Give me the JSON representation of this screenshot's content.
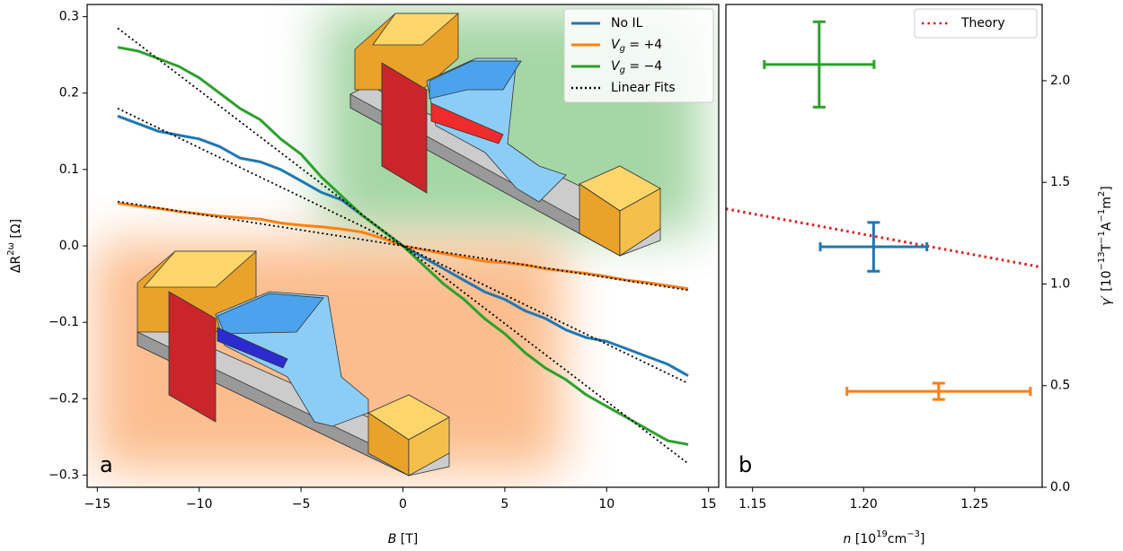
{
  "chart_data": [
    {
      "type": "line",
      "panel": "a",
      "xlabel": [
        {
          "text": "B",
          "italic": true
        },
        {
          "text": " [T]"
        }
      ],
      "ylabel": [
        {
          "text": "ΔR"
        },
        {
          "text": "2ω",
          "sup": true
        },
        {
          "text": " [Ω]"
        }
      ],
      "xlim": [
        -15.5,
        15.5
      ],
      "ylim": [
        -0.316,
        0.316
      ],
      "xticks": [
        {
          "value": -15,
          "label": "−15"
        },
        {
          "value": -10,
          "label": "−10"
        },
        {
          "value": -5,
          "label": "−5"
        },
        0,
        5,
        10,
        15
      ],
      "yticks": [
        {
          "value": -0.3,
          "label": "−0.3"
        },
        {
          "value": -0.2,
          "label": "−0.2"
        },
        {
          "value": -0.1,
          "label": "−0.1"
        },
        {
          "value": 0,
          "label": "0.0"
        },
        0.1,
        0.2,
        0.3
      ],
      "legend": "upper right",
      "x": [
        -14,
        -13,
        -12,
        -11,
        -10,
        -9,
        -8,
        -7,
        -6,
        -5,
        -4,
        -3,
        -2,
        -1,
        0,
        1,
        2,
        3,
        4,
        5,
        6,
        7,
        8,
        9,
        10,
        11,
        12,
        13,
        14
      ],
      "series": [
        {
          "name": "No IL",
          "color": "#1f77b4",
          "values": [
            0.17,
            0.16,
            0.15,
            0.145,
            0.14,
            0.13,
            0.115,
            0.11,
            0.1,
            0.085,
            0.07,
            0.06,
            0.04,
            0.02,
            0,
            -0.015,
            -0.03,
            -0.045,
            -0.06,
            -0.07,
            -0.085,
            -0.095,
            -0.11,
            -0.12,
            -0.125,
            -0.135,
            -0.145,
            -0.155,
            -0.17
          ]
        },
        {
          "name": [
            {
              "text": "V",
              "italic": true
            },
            {
              "text": "g",
              "italic": true,
              "sub": true
            },
            {
              "text": " = +4"
            }
          ],
          "color": "#ff7f0e",
          "values": [
            0.056,
            0.052,
            0.049,
            0.045,
            0.042,
            0.039,
            0.037,
            0.035,
            0.03,
            0.027,
            0.025,
            0.022,
            0.018,
            0.01,
            0,
            -0.005,
            -0.01,
            -0.015,
            -0.02,
            -0.022,
            -0.025,
            -0.03,
            -0.033,
            -0.036,
            -0.04,
            -0.045,
            -0.048,
            -0.052,
            -0.056
          ]
        },
        {
          "name": [
            {
              "text": "V",
              "italic": true
            },
            {
              "text": "g",
              "italic": true,
              "sub": true
            },
            {
              "text": " = −4"
            }
          ],
          "color": "#2ca02c",
          "values": [
            0.26,
            0.255,
            0.245,
            0.235,
            0.22,
            0.2,
            0.18,
            0.165,
            0.14,
            0.12,
            0.09,
            0.065,
            0.04,
            0.02,
            0,
            -0.025,
            -0.05,
            -0.07,
            -0.095,
            -0.115,
            -0.14,
            -0.16,
            -0.175,
            -0.195,
            -0.21,
            -0.225,
            -0.24,
            -0.255,
            -0.26
          ]
        }
      ],
      "fits": {
        "name": "Linear Fits",
        "color": "#000000",
        "x": [
          -14,
          14
        ],
        "values": [
          [
            0.18,
            -0.18
          ],
          [
            0.058,
            -0.058
          ],
          [
            0.285,
            -0.285
          ]
        ]
      }
    },
    {
      "type": "errorbar",
      "panel": "b",
      "xlabel": [
        {
          "text": "n",
          "italic": true
        },
        {
          "text": " [10"
        },
        {
          "text": "19",
          "sup": true
        },
        {
          "text": "cm"
        },
        {
          "text": "−3",
          "sup": true
        },
        {
          "text": "]"
        }
      ],
      "ylabel": [
        {
          "text": "γ′",
          "italic": true
        },
        {
          "text": " [10"
        },
        {
          "text": "−13",
          "sup": true
        },
        {
          "text": "T"
        },
        {
          "text": "−1",
          "sup": true
        },
        {
          "text": "A"
        },
        {
          "text": "−1",
          "sup": true
        },
        {
          "text": "m"
        },
        {
          "text": "2",
          "sup": true
        },
        {
          "text": "]"
        }
      ],
      "yaxis_side": "right",
      "xlim": [
        1.138,
        1.2804
      ],
      "ylim": [
        0,
        2.375
      ],
      "xticks": [
        1.15,
        {
          "value": 1.2,
          "label": "1.20"
        },
        1.25
      ],
      "yticks": [
        {
          "value": 0,
          "label": "0.0"
        },
        0.5,
        {
          "value": 1,
          "label": "1.0"
        },
        1.5,
        {
          "value": 2,
          "label": "2.0"
        }
      ],
      "legend": "upper right",
      "points": [
        {
          "color": "#2ca02c",
          "x": 1.18,
          "xerr": 0.0247,
          "y": 2.08,
          "yerr": 0.21
        },
        {
          "color": "#1f77b4",
          "x": 1.2045,
          "xerr": 0.024,
          "y": 1.183,
          "yerr": 0.12
        },
        {
          "color": "#ff7f0e",
          "x": 1.2338,
          "xerr": 0.0413,
          "y": 0.472,
          "yerr": 0.04
        }
      ],
      "theory": {
        "name": "Theory",
        "color": "#e41a1c",
        "x": [
          1.138,
          1.2804
        ],
        "values": [
          1.37,
          1.082
        ]
      }
    }
  ]
}
